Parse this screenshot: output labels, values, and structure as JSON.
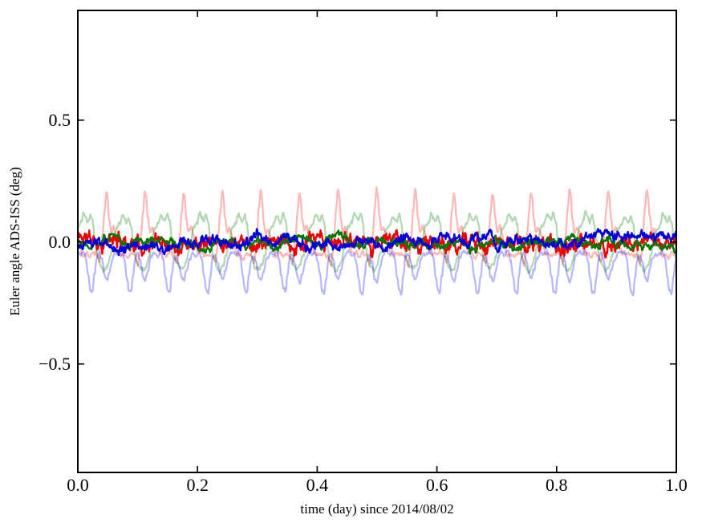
{
  "figure": {
    "background": "#ffffff",
    "frame_color": "#000000",
    "text_color": "#000000"
  },
  "chart_data": {
    "type": "line",
    "title": "",
    "xlabel": "time (day) since 2014/08/02",
    "ylabel": "Euler angle ADS-ISS (deg)",
    "xlim": [
      0.0,
      1.0
    ],
    "ylim": [
      -0.945,
      0.95
    ],
    "grid": false,
    "legend": "none",
    "xticks": {
      "values": [
        0.0,
        0.2,
        0.4,
        0.6,
        0.8,
        1.0
      ],
      "labels": [
        "0.0",
        "0.2",
        "0.4",
        "0.6",
        "0.8",
        "1.0"
      ]
    },
    "yticks": {
      "values": [
        -0.5,
        0.0,
        0.5
      ],
      "labels": [
        "−0.5",
        "0.0",
        "0.5"
      ]
    },
    "orbital_period_day": 0.0645,
    "n_samples": 1100,
    "series": [
      {
        "name": "red-faded-raw",
        "kind": "periodic",
        "color": "#ff0000",
        "opacity": 0.28,
        "linewidth": 2.3,
        "period_day": 0.0645,
        "phase_offset": 0.47,
        "peak": 0.22,
        "trough": -0.12,
        "cycle": [
          [
            0,
            -0.055
          ],
          [
            0.05,
            -0.07
          ],
          [
            0.09,
            -0.09
          ],
          [
            0.13,
            -0.05
          ],
          [
            0.17,
            0.03
          ],
          [
            0.22,
            0.13
          ],
          [
            0.27,
            0.21
          ],
          [
            0.3,
            0.19
          ],
          [
            0.34,
            0.1
          ],
          [
            0.4,
            0.04
          ],
          [
            0.46,
            0.06
          ],
          [
            0.52,
            0.03
          ],
          [
            0.58,
            -0.02
          ],
          [
            0.66,
            -0.05
          ],
          [
            0.74,
            -0.045
          ],
          [
            0.82,
            -0.055
          ],
          [
            0.9,
            -0.045
          ],
          [
            1,
            -0.055
          ]
        ],
        "noise": {
          "seed": 1,
          "step": 0.006,
          "decay": 0.8,
          "fine": 0.004
        }
      },
      {
        "name": "green-faded-raw",
        "kind": "periodic",
        "color": "#008000",
        "opacity": 0.3,
        "linewidth": 2.3,
        "period_day": 0.0645,
        "phase_offset": 0.1,
        "peak": 0.12,
        "trough": -0.12,
        "cycle": [
          [
            0,
            0.08
          ],
          [
            0.05,
            0.115
          ],
          [
            0.11,
            0.1
          ],
          [
            0.16,
            0.085
          ],
          [
            0.22,
            0.11
          ],
          [
            0.28,
            0.08
          ],
          [
            0.34,
            0.0
          ],
          [
            0.42,
            -0.07
          ],
          [
            0.5,
            -0.1
          ],
          [
            0.58,
            -0.115
          ],
          [
            0.66,
            -0.1
          ],
          [
            0.74,
            -0.06
          ],
          [
            0.82,
            0.0
          ],
          [
            0.9,
            0.06
          ],
          [
            1,
            0.08
          ]
        ],
        "noise": {
          "seed": 2,
          "step": 0.006,
          "decay": 0.8,
          "fine": 0.004
        }
      },
      {
        "name": "blue-faded-raw",
        "kind": "periodic",
        "color": "#0000ff",
        "opacity": 0.28,
        "linewidth": 2.3,
        "period_day": 0.0645,
        "phase_offset": 0.08,
        "peak": -0.03,
        "trough": -0.215,
        "cycle": [
          [
            0,
            -0.05
          ],
          [
            0.07,
            -0.04
          ],
          [
            0.13,
            -0.07
          ],
          [
            0.19,
            -0.14
          ],
          [
            0.25,
            -0.2
          ],
          [
            0.3,
            -0.21
          ],
          [
            0.35,
            -0.14
          ],
          [
            0.41,
            -0.07
          ],
          [
            0.47,
            -0.05
          ],
          [
            0.54,
            -0.08
          ],
          [
            0.61,
            -0.14
          ],
          [
            0.67,
            -0.16
          ],
          [
            0.74,
            -0.12
          ],
          [
            0.81,
            -0.07
          ],
          [
            0.9,
            -0.045
          ],
          [
            1,
            -0.05
          ]
        ],
        "noise": {
          "seed": 3,
          "step": 0.006,
          "decay": 0.8,
          "fine": 0.004
        }
      },
      {
        "name": "red-filtered",
        "kind": "noisy",
        "color": "#ee0000",
        "opacity": 1.0,
        "linewidth": 2.4,
        "mean": 0.0,
        "trend": [
          0.004,
          -0.012
        ],
        "slow": [
          [
            0.01,
            15.5,
            0.8
          ],
          [
            0.008,
            4.2,
            1.7
          ]
        ],
        "noise": {
          "seed": 11,
          "step": 0.018,
          "decay": 0.78,
          "fine": 0.012
        }
      },
      {
        "name": "green-filtered",
        "kind": "noisy",
        "color": "#007700",
        "opacity": 1.0,
        "linewidth": 2.4,
        "mean": 0.0,
        "trend": [
          0.002,
          -0.01
        ],
        "slow": [
          [
            0.009,
            15.5,
            2.9
          ],
          [
            0.01,
            2.6,
            0.6
          ]
        ],
        "noise": {
          "seed": 22,
          "step": 0.01,
          "decay": 0.86,
          "fine": 0.005
        }
      },
      {
        "name": "blue-filtered",
        "kind": "noisy",
        "color": "#0000dd",
        "opacity": 1.0,
        "linewidth": 2.4,
        "mean": -0.006,
        "trend": [
          -0.012,
          0.022
        ],
        "slow": [
          [
            0.012,
            15.5,
            4.4
          ],
          [
            0.012,
            3.1,
            2.2
          ]
        ],
        "noise": {
          "seed": 33,
          "step": 0.012,
          "decay": 0.86,
          "fine": 0.007
        }
      }
    ]
  }
}
